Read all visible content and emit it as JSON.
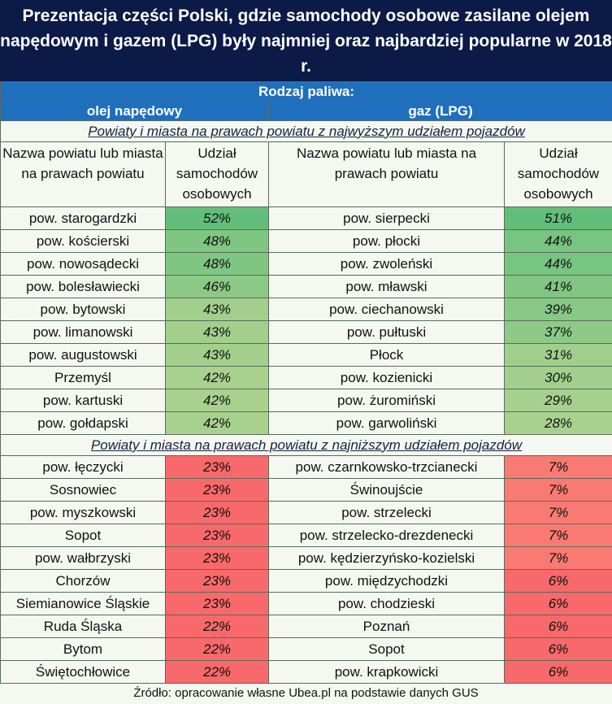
{
  "title": "Prezentacja części Polski, gdzie samochody osobowe zasilane olejem napędowym i gazem (LPG) były najmniej oraz najbardziej popularne w 2018 r.",
  "fuel_type_label": "Rodzaj paliwa:",
  "fuels": [
    "olej napędowy",
    "gaz (LPG)"
  ],
  "headers": {
    "name_left": "Nazwa powiatu lub miasta na prawach powiatu",
    "share_left": "Udział samochodów osobowych",
    "name_right": "Nazwa powiatu lub miasta na prawach powiatu",
    "share_right": "Udział samochodów osobowych"
  },
  "colors": {
    "title_bg": "#0c1a48",
    "header_blue": "#1f6fbf",
    "green_high": "#63be7b",
    "green_low": "#a9d18e",
    "red": "#f8696b",
    "red_light": "#f97a72"
  },
  "sections": [
    {
      "title": "Powiaty i miasta na prawach powiatu z najwyższym udziałem pojazdów",
      "kind": "high",
      "rows": [
        {
          "diesel_name": "pow. starogardzki",
          "diesel": "52%",
          "lpg_name": "pow. sierpecki",
          "lpg": "51%"
        },
        {
          "diesel_name": "pow. kościerski",
          "diesel": "48%",
          "lpg_name": "pow. płocki",
          "lpg": "44%"
        },
        {
          "diesel_name": "pow. nowosądecki",
          "diesel": "48%",
          "lpg_name": "pow. zwoleński",
          "lpg": "44%"
        },
        {
          "diesel_name": "pow. bolesławiecki",
          "diesel": "46%",
          "lpg_name": "pow. mławski",
          "lpg": "41%"
        },
        {
          "diesel_name": "pow. bytowski",
          "diesel": "43%",
          "lpg_name": "pow. ciechanowski",
          "lpg": "39%"
        },
        {
          "diesel_name": "pow. limanowski",
          "diesel": "43%",
          "lpg_name": "pow. pułtuski",
          "lpg": "37%"
        },
        {
          "diesel_name": "pow. augustowski",
          "diesel": "43%",
          "lpg_name": "Płock",
          "lpg": "31%"
        },
        {
          "diesel_name": "Przemyśl",
          "diesel": "42%",
          "lpg_name": "pow. kozienicki",
          "lpg": "30%"
        },
        {
          "diesel_name": "pow. kartuski",
          "diesel": "42%",
          "lpg_name": "pow. żuromiński",
          "lpg": "29%"
        },
        {
          "diesel_name": "pow. gołdapski",
          "diesel": "42%",
          "lpg_name": "pow. garwoliński",
          "lpg": "28%"
        }
      ]
    },
    {
      "title": "Powiaty i miasta na prawach powiatu z najniższym udziałem pojazdów",
      "kind": "low",
      "rows": [
        {
          "diesel_name": "pow. łęczycki",
          "diesel": "23%",
          "lpg_name": "pow. czarnkowsko-trzcianecki",
          "lpg": "7%"
        },
        {
          "diesel_name": "Sosnowiec",
          "diesel": "23%",
          "lpg_name": "Świnoujście",
          "lpg": "7%"
        },
        {
          "diesel_name": "pow. myszkowski",
          "diesel": "23%",
          "lpg_name": "pow. strzelecki",
          "lpg": "7%"
        },
        {
          "diesel_name": "Sopot",
          "diesel": "23%",
          "lpg_name": "pow. strzelecko-drezdenecki",
          "lpg": "7%"
        },
        {
          "diesel_name": "pow. wałbrzyski",
          "diesel": "23%",
          "lpg_name": "pow. kędzierzyńsko-kozielski",
          "lpg": "7%"
        },
        {
          "diesel_name": "Chorzów",
          "diesel": "23%",
          "lpg_name": "pow. międzychodzki",
          "lpg": "6%"
        },
        {
          "diesel_name": "Siemianowice Śląskie",
          "diesel": "23%",
          "lpg_name": "pow. chodzieski",
          "lpg": "6%"
        },
        {
          "diesel_name": "Ruda Śląska",
          "diesel": "22%",
          "lpg_name": "Poznań",
          "lpg": "6%"
        },
        {
          "diesel_name": "Bytom",
          "diesel": "22%",
          "lpg_name": "Sopot",
          "lpg": "6%"
        },
        {
          "diesel_name": "Świętochłowice",
          "diesel": "22%",
          "lpg_name": "pow. krapkowicki",
          "lpg": "6%"
        }
      ]
    }
  ],
  "footer": "Źródło: opracowanie własne Ubea.pl na podstawie danych GUS"
}
